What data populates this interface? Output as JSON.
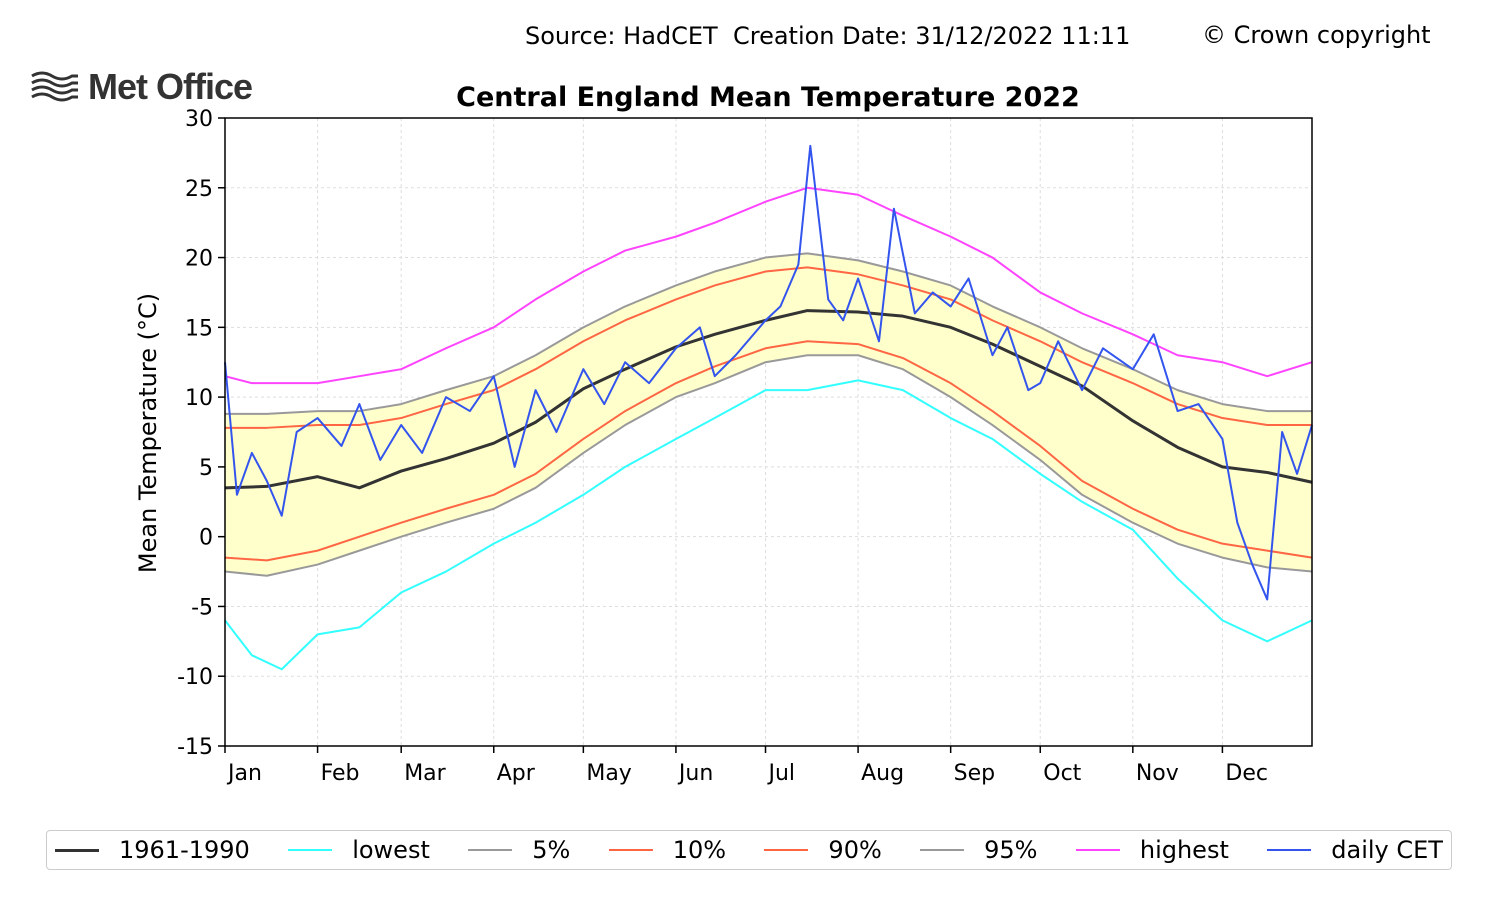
{
  "header": {
    "source_text": "Source: HadCET  Creation Date: 31/12/2022 11:11",
    "copyright_text": "© Crown copyright",
    "logo_text": "Met Office",
    "logo_icon": "met-office-wave-logo"
  },
  "chart_data": {
    "type": "line",
    "title": "Central England Mean Temperature 2022",
    "ylabel": "Mean Temperature (°C)",
    "xlabel": "",
    "ylim": [
      -15,
      30
    ],
    "yticks": [
      -15,
      -10,
      -5,
      0,
      5,
      10,
      15,
      20,
      25,
      30
    ],
    "ytick_labels": [
      "-15",
      "-10",
      "-5",
      "0",
      "5",
      "10",
      "15",
      "20",
      "25",
      "30"
    ],
    "month_labels": [
      "Jan",
      "Feb",
      "Mar",
      "Apr",
      "May",
      "Jun",
      "Jul",
      "Aug",
      "Sep",
      "Oct",
      "Nov",
      "Dec"
    ],
    "month_start_days": [
      1,
      32,
      60,
      91,
      121,
      152,
      182,
      213,
      244,
      274,
      305,
      335
    ],
    "xlim": [
      1,
      365
    ],
    "grid": true,
    "legend_position": "bottom",
    "shaded_band": {
      "between": [
        "5%",
        "95%"
      ],
      "color": "#ffffcc"
    },
    "series": [
      {
        "name": "1961-1990",
        "color": "#333333",
        "width": 3,
        "x": [
          1,
          15,
          32,
          46,
          60,
          75,
          91,
          105,
          121,
          135,
          152,
          165,
          182,
          196,
          213,
          228,
          244,
          258,
          274,
          288,
          305,
          320,
          335,
          350,
          365
        ],
        "values": [
          3.5,
          3.6,
          4.3,
          3.5,
          4.7,
          5.6,
          6.7,
          8.2,
          10.6,
          12.0,
          13.6,
          14.5,
          15.5,
          16.2,
          16.1,
          15.8,
          15.0,
          13.8,
          12.2,
          10.8,
          8.3,
          6.4,
          5.0,
          4.6,
          3.9
        ]
      },
      {
        "name": "lowest",
        "color": "#33ffff",
        "width": 2,
        "x": [
          1,
          10,
          20,
          32,
          46,
          60,
          75,
          91,
          105,
          121,
          135,
          152,
          165,
          182,
          196,
          213,
          228,
          244,
          258,
          274,
          288,
          305,
          320,
          335,
          350,
          365
        ],
        "values": [
          -6.0,
          -8.5,
          -9.5,
          -7.0,
          -6.5,
          -4.0,
          -2.5,
          -0.5,
          1.0,
          3.0,
          5.0,
          7.0,
          8.5,
          10.5,
          10.5,
          11.2,
          10.5,
          8.5,
          7.0,
          4.5,
          2.5,
          0.5,
          -3.0,
          -6.0,
          -7.5,
          -6.0
        ]
      },
      {
        "name": "5%",
        "color": "#999999",
        "width": 2,
        "x": [
          1,
          15,
          32,
          46,
          60,
          75,
          91,
          105,
          121,
          135,
          152,
          165,
          182,
          196,
          213,
          228,
          244,
          258,
          274,
          288,
          305,
          320,
          335,
          350,
          365
        ],
        "values": [
          -2.5,
          -2.8,
          -2.0,
          -1.0,
          0.0,
          1.0,
          2.0,
          3.5,
          6.0,
          8.0,
          10.0,
          11.0,
          12.5,
          13.0,
          13.0,
          12.0,
          10.0,
          8.0,
          5.5,
          3.0,
          1.0,
          -0.5,
          -1.5,
          -2.2,
          -2.5
        ]
      },
      {
        "name": "10%",
        "color": "#ff6644",
        "width": 2,
        "x": [
          1,
          15,
          32,
          46,
          60,
          75,
          91,
          105,
          121,
          135,
          152,
          165,
          182,
          196,
          213,
          228,
          244,
          258,
          274,
          288,
          305,
          320,
          335,
          350,
          365
        ],
        "values": [
          -1.5,
          -1.7,
          -1.0,
          0.0,
          1.0,
          2.0,
          3.0,
          4.5,
          7.0,
          9.0,
          11.0,
          12.2,
          13.5,
          14.0,
          13.8,
          12.8,
          11.0,
          9.0,
          6.5,
          4.0,
          2.0,
          0.5,
          -0.5,
          -1.0,
          -1.5
        ]
      },
      {
        "name": "90%",
        "color": "#ff6644",
        "width": 2,
        "x": [
          1,
          15,
          32,
          46,
          60,
          75,
          91,
          105,
          121,
          135,
          152,
          165,
          182,
          196,
          213,
          228,
          244,
          258,
          274,
          288,
          305,
          320,
          335,
          350,
          365
        ],
        "values": [
          7.8,
          7.8,
          8.0,
          8.0,
          8.5,
          9.5,
          10.5,
          12.0,
          14.0,
          15.5,
          17.0,
          18.0,
          19.0,
          19.3,
          18.8,
          18.0,
          17.0,
          15.5,
          14.0,
          12.5,
          11.0,
          9.5,
          8.5,
          8.0,
          8.0
        ]
      },
      {
        "name": "95%",
        "color": "#999999",
        "width": 2,
        "x": [
          1,
          15,
          32,
          46,
          60,
          75,
          91,
          105,
          121,
          135,
          152,
          165,
          182,
          196,
          213,
          228,
          244,
          258,
          274,
          288,
          305,
          320,
          335,
          350,
          365
        ],
        "values": [
          8.8,
          8.8,
          9.0,
          9.0,
          9.5,
          10.5,
          11.5,
          13.0,
          15.0,
          16.5,
          18.0,
          19.0,
          20.0,
          20.3,
          19.8,
          19.0,
          18.0,
          16.5,
          15.0,
          13.5,
          12.0,
          10.5,
          9.5,
          9.0,
          9.0
        ]
      },
      {
        "name": "highest",
        "color": "#ff44ff",
        "width": 2,
        "x": [
          1,
          10,
          20,
          32,
          46,
          60,
          75,
          91,
          105,
          121,
          135,
          152,
          165,
          182,
          196,
          213,
          228,
          244,
          258,
          274,
          288,
          305,
          320,
          335,
          350,
          365
        ],
        "values": [
          11.5,
          11.0,
          11.0,
          11.0,
          11.5,
          12.0,
          13.5,
          15.0,
          17.0,
          19.0,
          20.5,
          21.5,
          22.5,
          24.0,
          25.0,
          24.5,
          23.0,
          21.5,
          20.0,
          17.5,
          16.0,
          14.5,
          13.0,
          12.5,
          11.5,
          12.5
        ]
      },
      {
        "name": "daily CET",
        "color": "#3355ee",
        "width": 2,
        "x": [
          1,
          5,
          10,
          15,
          20,
          25,
          32,
          40,
          46,
          53,
          60,
          67,
          75,
          83,
          91,
          98,
          105,
          112,
          121,
          128,
          135,
          143,
          152,
          160,
          165,
          172,
          182,
          187,
          193,
          197,
          203,
          208,
          213,
          220,
          225,
          232,
          238,
          244,
          250,
          258,
          263,
          270,
          274,
          280,
          288,
          295,
          305,
          312,
          320,
          327,
          335,
          340,
          345,
          350,
          355,
          360,
          365
        ],
        "values": [
          12.5,
          3.0,
          6.0,
          4.0,
          1.5,
          7.5,
          8.5,
          6.5,
          9.5,
          5.5,
          8.0,
          6.0,
          10.0,
          9.0,
          11.5,
          5.0,
          10.5,
          7.5,
          12.0,
          9.5,
          12.5,
          11.0,
          13.5,
          15.0,
          11.5,
          13.0,
          15.5,
          16.5,
          19.5,
          28.0,
          17.0,
          15.5,
          18.5,
          14.0,
          23.5,
          16.0,
          17.5,
          16.5,
          18.5,
          13.0,
          15.0,
          10.5,
          11.0,
          14.0,
          10.5,
          13.5,
          12.0,
          14.5,
          9.0,
          9.5,
          7.0,
          1.0,
          -2.0,
          -4.5,
          7.5,
          4.5,
          8.0
        ]
      }
    ]
  },
  "legend": {
    "items": [
      {
        "label": "1961-1990",
        "color": "#333333",
        "width": 3
      },
      {
        "label": "lowest",
        "color": "#33ffff",
        "width": 2
      },
      {
        "label": "5%",
        "color": "#999999",
        "width": 2
      },
      {
        "label": "10%",
        "color": "#ff6644",
        "width": 2
      },
      {
        "label": "90%",
        "color": "#ff6644",
        "width": 2
      },
      {
        "label": "95%",
        "color": "#999999",
        "width": 2
      },
      {
        "label": "highest",
        "color": "#ff44ff",
        "width": 2
      },
      {
        "label": "daily CET",
        "color": "#3355ee",
        "width": 2
      }
    ]
  }
}
